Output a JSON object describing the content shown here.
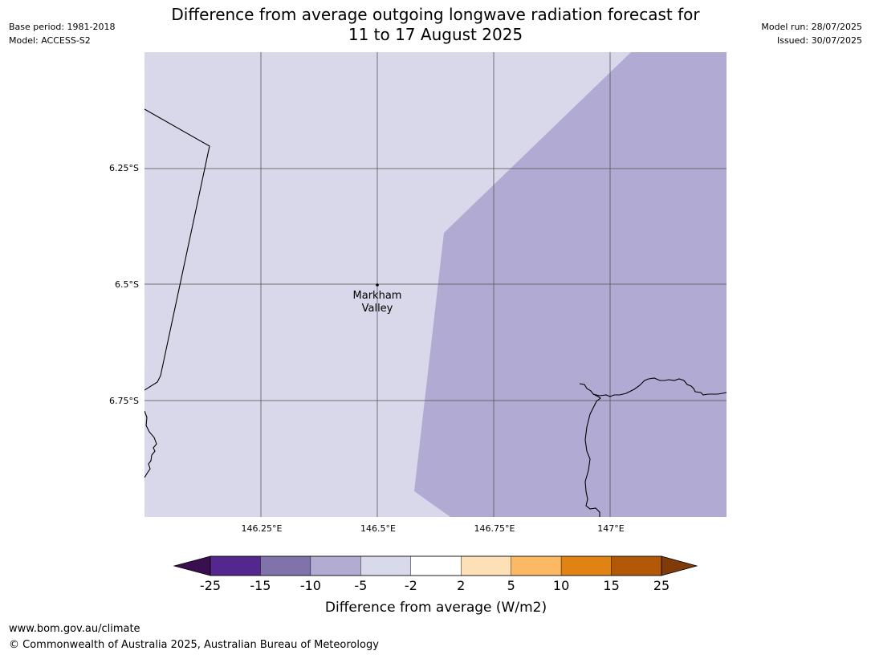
{
  "header": {
    "title_line1": "Difference from average outgoing longwave radiation forecast for",
    "title_line2": "11 to 17 August 2025",
    "base_period": "Base period: 1981-2018",
    "model": "Model: ACCESS-S2",
    "model_run": "Model run: 28/07/2025",
    "issued": "Issued: 30/07/2025"
  },
  "map": {
    "longitude_ticks": [
      "146.25°E",
      "146.5°E",
      "146.75°E",
      "147°E"
    ],
    "latitude_ticks": [
      "6.25°S",
      "6.5°S",
      "6.75°S"
    ],
    "place": {
      "name_line1": "Markham",
      "name_line2": "Valley"
    },
    "fill_colors": {
      "west_band": "#d8d8ea",
      "east_band": "#b1abd3"
    }
  },
  "colorbar": {
    "label": "Difference from average (W/m2)",
    "tick_labels": [
      "-25",
      "-15",
      "-10",
      "-5",
      "-2",
      "2",
      "5",
      "10",
      "15",
      "25"
    ],
    "low_extend_color": "#3b0f4f",
    "high_extend_color": "#7f3b08",
    "colors": [
      "#54278f",
      "#8073ac",
      "#b2abd2",
      "#d8daeb",
      "#ffffff",
      "#fee0b6",
      "#fdb863",
      "#e08214",
      "#b35806"
    ]
  },
  "footer": {
    "url": "www.bom.gov.au/climate",
    "copyright": "© Commonwealth of Australia 2025, Australian Bureau of Meteorology"
  }
}
